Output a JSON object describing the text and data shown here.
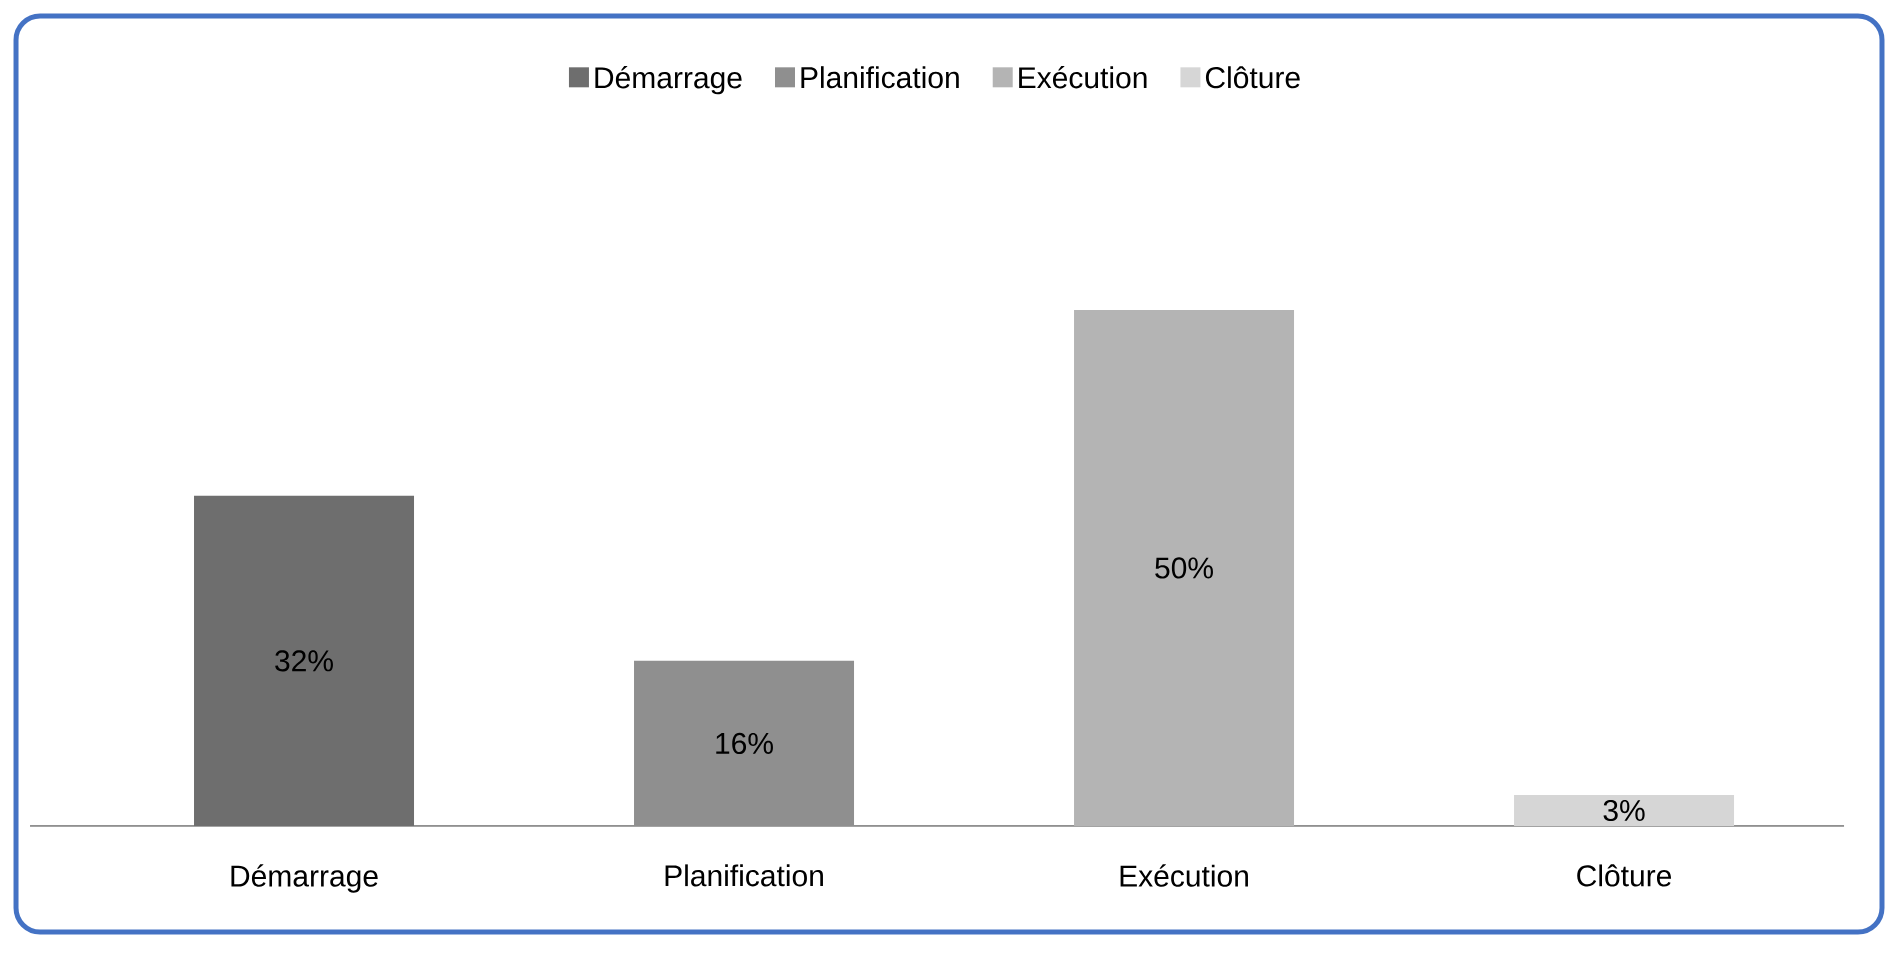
{
  "chart_data": {
    "type": "bar",
    "categories": [
      "Démarrage",
      "Planification",
      "Exécution",
      "Clôture"
    ],
    "series": [
      {
        "name": "Démarrage",
        "color": "#6e6e6e",
        "values": [
          32,
          null,
          null,
          null
        ],
        "value_labels": [
          "32%",
          null,
          null,
          null
        ]
      },
      {
        "name": "Planification",
        "color": "#8f8f8f",
        "values": [
          null,
          16,
          null,
          null
        ],
        "value_labels": [
          null,
          "16%",
          null,
          null
        ]
      },
      {
        "name": "Exécution",
        "color": "#b4b4b4",
        "values": [
          null,
          null,
          50,
          null
        ],
        "value_labels": [
          null,
          null,
          "50%",
          null
        ]
      },
      {
        "name": "Clôture",
        "color": "#d6d6d6",
        "values": [
          null,
          null,
          null,
          3
        ],
        "value_labels": [
          null,
          null,
          null,
          "3%"
        ]
      }
    ],
    "legend": "top"
  }
}
